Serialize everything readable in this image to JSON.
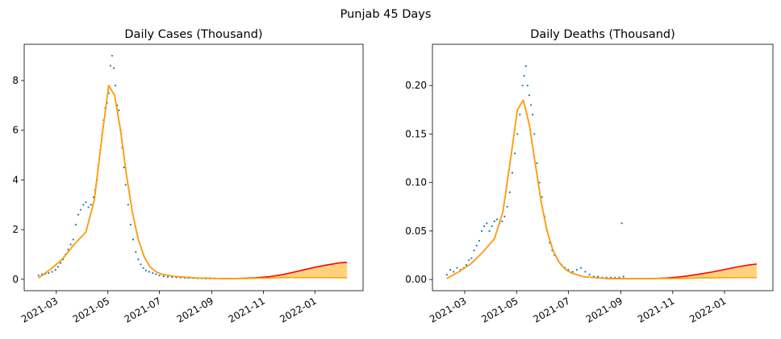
{
  "figure": {
    "suptitle": "Punjab 45 Days"
  },
  "chart_data": [
    {
      "type": "scatter",
      "title": "Daily Cases (Thousand)",
      "xlabel": "",
      "ylabel": "",
      "x_range": [
        "2021-01-22",
        "2022-02-27"
      ],
      "ylim": [
        -0.46,
        9.46
      ],
      "yticks": [
        0,
        2,
        4,
        6,
        8
      ],
      "ytick_labels": [
        "0",
        "2",
        "4",
        "6",
        "8"
      ],
      "xticks": [
        "2021-03-01",
        "2021-05-01",
        "2021-07-01",
        "2021-09-01",
        "2021-11-01",
        "2022-01-01"
      ],
      "xtick_labels": [
        "2021-03",
        "2021-05",
        "2021-07",
        "2021-09",
        "2021-11",
        "2022-01"
      ],
      "grid": false,
      "legend": "none",
      "series": [
        {
          "kind": "points",
          "color": "#1f77b4",
          "x": [
            "2021-02-08",
            "2021-02-12",
            "2021-02-16",
            "2021-02-20",
            "2021-02-24",
            "2021-02-28",
            "2021-03-03",
            "2021-03-06",
            "2021-03-09",
            "2021-03-12",
            "2021-03-15",
            "2021-03-18",
            "2021-03-21",
            "2021-03-24",
            "2021-03-27",
            "2021-03-30",
            "2021-04-02",
            "2021-04-05",
            "2021-04-08",
            "2021-04-11",
            "2021-04-14",
            "2021-04-16",
            "2021-04-18",
            "2021-04-20",
            "2021-04-22",
            "2021-04-24",
            "2021-04-26",
            "2021-04-28",
            "2021-04-30",
            "2021-05-02",
            "2021-05-04",
            "2021-05-06",
            "2021-05-08",
            "2021-05-10",
            "2021-05-12",
            "2021-05-14",
            "2021-05-16",
            "2021-05-18",
            "2021-05-20",
            "2021-05-22",
            "2021-05-25",
            "2021-05-28",
            "2021-05-31",
            "2021-06-03",
            "2021-06-06",
            "2021-06-09",
            "2021-06-12",
            "2021-06-15",
            "2021-06-19",
            "2021-06-23",
            "2021-06-27",
            "2021-07-01",
            "2021-07-06",
            "2021-07-11",
            "2021-07-16",
            "2021-07-21",
            "2021-07-26",
            "2021-07-31",
            "2021-08-05",
            "2021-08-10",
            "2021-08-15",
            "2021-08-20",
            "2021-08-25",
            "2021-08-30",
            "2021-09-04"
          ],
          "y": [
            0.15,
            0.2,
            0.22,
            0.25,
            0.3,
            0.38,
            0.5,
            0.65,
            0.8,
            1.0,
            1.2,
            1.4,
            1.6,
            2.2,
            2.6,
            2.8,
            3.0,
            3.1,
            2.9,
            3.0,
            3.3,
            3.6,
            4.0,
            4.6,
            5.2,
            5.8,
            6.4,
            6.9,
            7.1,
            7.5,
            8.6,
            9.0,
            8.5,
            7.8,
            7.0,
            6.8,
            6.0,
            5.3,
            4.5,
            3.8,
            3.0,
            2.2,
            1.6,
            1.1,
            0.8,
            0.6,
            0.45,
            0.35,
            0.3,
            0.25,
            0.2,
            0.15,
            0.12,
            0.1,
            0.09,
            0.08,
            0.07,
            0.06,
            0.05,
            0.05,
            0.04,
            0.04,
            0.03,
            0.03,
            0.03
          ]
        },
        {
          "kind": "line",
          "color": "#ff0000",
          "x": [
            "2021-02-08",
            "2021-02-22",
            "2021-03-08",
            "2021-03-22",
            "2021-04-05",
            "2021-04-15",
            "2021-04-25",
            "2021-05-02",
            "2021-05-09",
            "2021-05-16",
            "2021-05-23",
            "2021-05-30",
            "2021-06-06",
            "2021-06-13",
            "2021-06-20",
            "2021-06-27",
            "2021-07-04",
            "2021-07-18",
            "2021-08-01",
            "2021-08-15",
            "2021-08-29",
            "2021-09-12",
            "2021-09-26",
            "2021-10-10",
            "2021-10-24",
            "2021-11-07",
            "2021-11-21",
            "2021-12-05",
            "2021-12-19",
            "2022-01-02",
            "2022-01-16",
            "2022-01-30",
            "2022-02-08"
          ],
          "y": [
            0.05,
            0.4,
            0.8,
            1.4,
            1.9,
            3.2,
            6.0,
            7.8,
            7.4,
            6.0,
            4.2,
            2.7,
            1.6,
            0.9,
            0.5,
            0.3,
            0.2,
            0.12,
            0.08,
            0.05,
            0.04,
            0.03,
            0.03,
            0.04,
            0.06,
            0.1,
            0.17,
            0.27,
            0.38,
            0.49,
            0.58,
            0.66,
            0.68
          ]
        },
        {
          "kind": "line",
          "color": "#ffa500",
          "x": [
            "2021-02-08",
            "2021-02-22",
            "2021-03-08",
            "2021-03-22",
            "2021-04-05",
            "2021-04-15",
            "2021-04-25",
            "2021-05-02",
            "2021-05-09",
            "2021-05-16",
            "2021-05-23",
            "2021-05-30",
            "2021-06-06",
            "2021-06-13",
            "2021-06-20",
            "2021-06-27",
            "2021-07-04",
            "2021-07-18",
            "2021-08-01",
            "2021-08-15",
            "2021-08-29",
            "2021-09-12",
            "2021-09-26",
            "2021-10-10",
            "2021-10-24",
            "2021-11-07",
            "2021-11-21",
            "2021-12-05",
            "2021-12-19",
            "2022-01-02",
            "2022-01-16",
            "2022-01-30",
            "2022-02-08"
          ],
          "y": [
            0.05,
            0.4,
            0.8,
            1.4,
            1.9,
            3.2,
            6.0,
            7.8,
            7.4,
            6.0,
            4.2,
            2.7,
            1.6,
            0.9,
            0.5,
            0.3,
            0.2,
            0.12,
            0.08,
            0.05,
            0.04,
            0.03,
            0.03,
            0.03,
            0.04,
            0.05,
            0.06,
            0.07,
            0.07,
            0.07,
            0.07,
            0.06,
            0.06
          ]
        }
      ],
      "band": {
        "color": "#ffa500",
        "between": [
          1,
          2
        ]
      }
    },
    {
      "type": "scatter",
      "title": "Daily Deaths (Thousand)",
      "xlabel": "",
      "ylabel": "",
      "x_range": [
        "2021-01-22",
        "2022-02-27"
      ],
      "ylim": [
        -0.0115,
        0.2425
      ],
      "yticks": [
        0,
        0.05,
        0.1,
        0.15,
        0.2
      ],
      "ytick_labels": [
        "0.00",
        "0.05",
        "0.10",
        "0.15",
        "0.20"
      ],
      "xticks": [
        "2021-03-01",
        "2021-05-01",
        "2021-07-01",
        "2021-09-01",
        "2021-11-01",
        "2022-01-01"
      ],
      "xtick_labels": [
        "2021-03",
        "2021-05",
        "2021-07",
        "2021-09",
        "2021-11",
        "2022-01"
      ],
      "grid": false,
      "legend": "none",
      "series": [
        {
          "kind": "points",
          "color": "#1f77b4",
          "x": [
            "2021-02-08",
            "2021-02-12",
            "2021-02-16",
            "2021-02-20",
            "2021-02-24",
            "2021-02-28",
            "2021-03-03",
            "2021-03-06",
            "2021-03-09",
            "2021-03-12",
            "2021-03-15",
            "2021-03-18",
            "2021-03-21",
            "2021-03-24",
            "2021-03-27",
            "2021-03-30",
            "2021-04-02",
            "2021-04-05",
            "2021-04-08",
            "2021-04-11",
            "2021-04-14",
            "2021-04-17",
            "2021-04-20",
            "2021-04-23",
            "2021-04-26",
            "2021-04-29",
            "2021-05-02",
            "2021-05-05",
            "2021-05-08",
            "2021-05-10",
            "2021-05-12",
            "2021-05-14",
            "2021-05-16",
            "2021-05-18",
            "2021-05-20",
            "2021-05-22",
            "2021-05-25",
            "2021-05-28",
            "2021-05-31",
            "2021-06-03",
            "2021-06-06",
            "2021-06-09",
            "2021-06-12",
            "2021-06-15",
            "2021-06-19",
            "2021-06-23",
            "2021-06-27",
            "2021-07-01",
            "2021-07-06",
            "2021-07-11",
            "2021-07-16",
            "2021-07-21",
            "2021-07-26",
            "2021-07-31",
            "2021-08-05",
            "2021-08-10",
            "2021-08-15",
            "2021-08-20",
            "2021-08-25",
            "2021-08-30",
            "2021-09-02",
            "2021-09-04"
          ],
          "y": [
            0.005,
            0.01,
            0.008,
            0.012,
            0.01,
            0.012,
            0.015,
            0.02,
            0.022,
            0.03,
            0.035,
            0.04,
            0.05,
            0.055,
            0.058,
            0.05,
            0.055,
            0.06,
            0.062,
            0.058,
            0.06,
            0.065,
            0.075,
            0.09,
            0.11,
            0.13,
            0.15,
            0.17,
            0.2,
            0.21,
            0.22,
            0.2,
            0.19,
            0.18,
            0.17,
            0.15,
            0.12,
            0.1,
            0.085,
            0.065,
            0.05,
            0.038,
            0.03,
            0.025,
            0.02,
            0.015,
            0.012,
            0.01,
            0.008,
            0.01,
            0.012,
            0.008,
            0.005,
            0.003,
            0.003,
            0.002,
            0.002,
            0.002,
            0.002,
            0.002,
            0.058,
            0.003
          ]
        },
        {
          "kind": "line",
          "color": "#ff0000",
          "x": [
            "2021-02-08",
            "2021-02-22",
            "2021-03-08",
            "2021-03-22",
            "2021-04-05",
            "2021-04-15",
            "2021-04-25",
            "2021-05-02",
            "2021-05-09",
            "2021-05-16",
            "2021-05-23",
            "2021-05-30",
            "2021-06-06",
            "2021-06-13",
            "2021-06-20",
            "2021-06-27",
            "2021-07-04",
            "2021-07-18",
            "2021-08-01",
            "2021-08-15",
            "2021-08-29",
            "2021-09-12",
            "2021-09-26",
            "2021-10-10",
            "2021-10-24",
            "2021-11-07",
            "2021-11-21",
            "2021-12-05",
            "2021-12-19",
            "2022-01-02",
            "2022-01-16",
            "2022-01-30",
            "2022-02-08"
          ],
          "y": [
            0.001,
            0.008,
            0.016,
            0.028,
            0.042,
            0.07,
            0.13,
            0.175,
            0.185,
            0.16,
            0.12,
            0.08,
            0.05,
            0.03,
            0.018,
            0.011,
            0.007,
            0.003,
            0.002,
            0.001,
            0.001,
            0.001,
            0.001,
            0.001,
            0.0015,
            0.0025,
            0.004,
            0.006,
            0.008,
            0.0105,
            0.013,
            0.015,
            0.016
          ]
        },
        {
          "kind": "line",
          "color": "#ffa500",
          "x": [
            "2021-02-08",
            "2021-02-22",
            "2021-03-08",
            "2021-03-22",
            "2021-04-05",
            "2021-04-15",
            "2021-04-25",
            "2021-05-02",
            "2021-05-09",
            "2021-05-16",
            "2021-05-23",
            "2021-05-30",
            "2021-06-06",
            "2021-06-13",
            "2021-06-20",
            "2021-06-27",
            "2021-07-04",
            "2021-07-18",
            "2021-08-01",
            "2021-08-15",
            "2021-08-29",
            "2021-09-12",
            "2021-09-26",
            "2021-10-10",
            "2021-10-24",
            "2021-11-07",
            "2021-11-21",
            "2021-12-05",
            "2021-12-19",
            "2022-01-02",
            "2022-01-16",
            "2022-01-30",
            "2022-02-08"
          ],
          "y": [
            0.001,
            0.008,
            0.016,
            0.028,
            0.042,
            0.07,
            0.13,
            0.175,
            0.185,
            0.16,
            0.12,
            0.08,
            0.05,
            0.03,
            0.018,
            0.011,
            0.007,
            0.003,
            0.002,
            0.001,
            0.001,
            0.001,
            0.001,
            0.001,
            0.001,
            0.001,
            0.0013,
            0.0016,
            0.0018,
            0.0019,
            0.002,
            0.002,
            0.002
          ]
        }
      ],
      "band": {
        "color": "#ffa500",
        "between": [
          1,
          2
        ]
      }
    }
  ]
}
